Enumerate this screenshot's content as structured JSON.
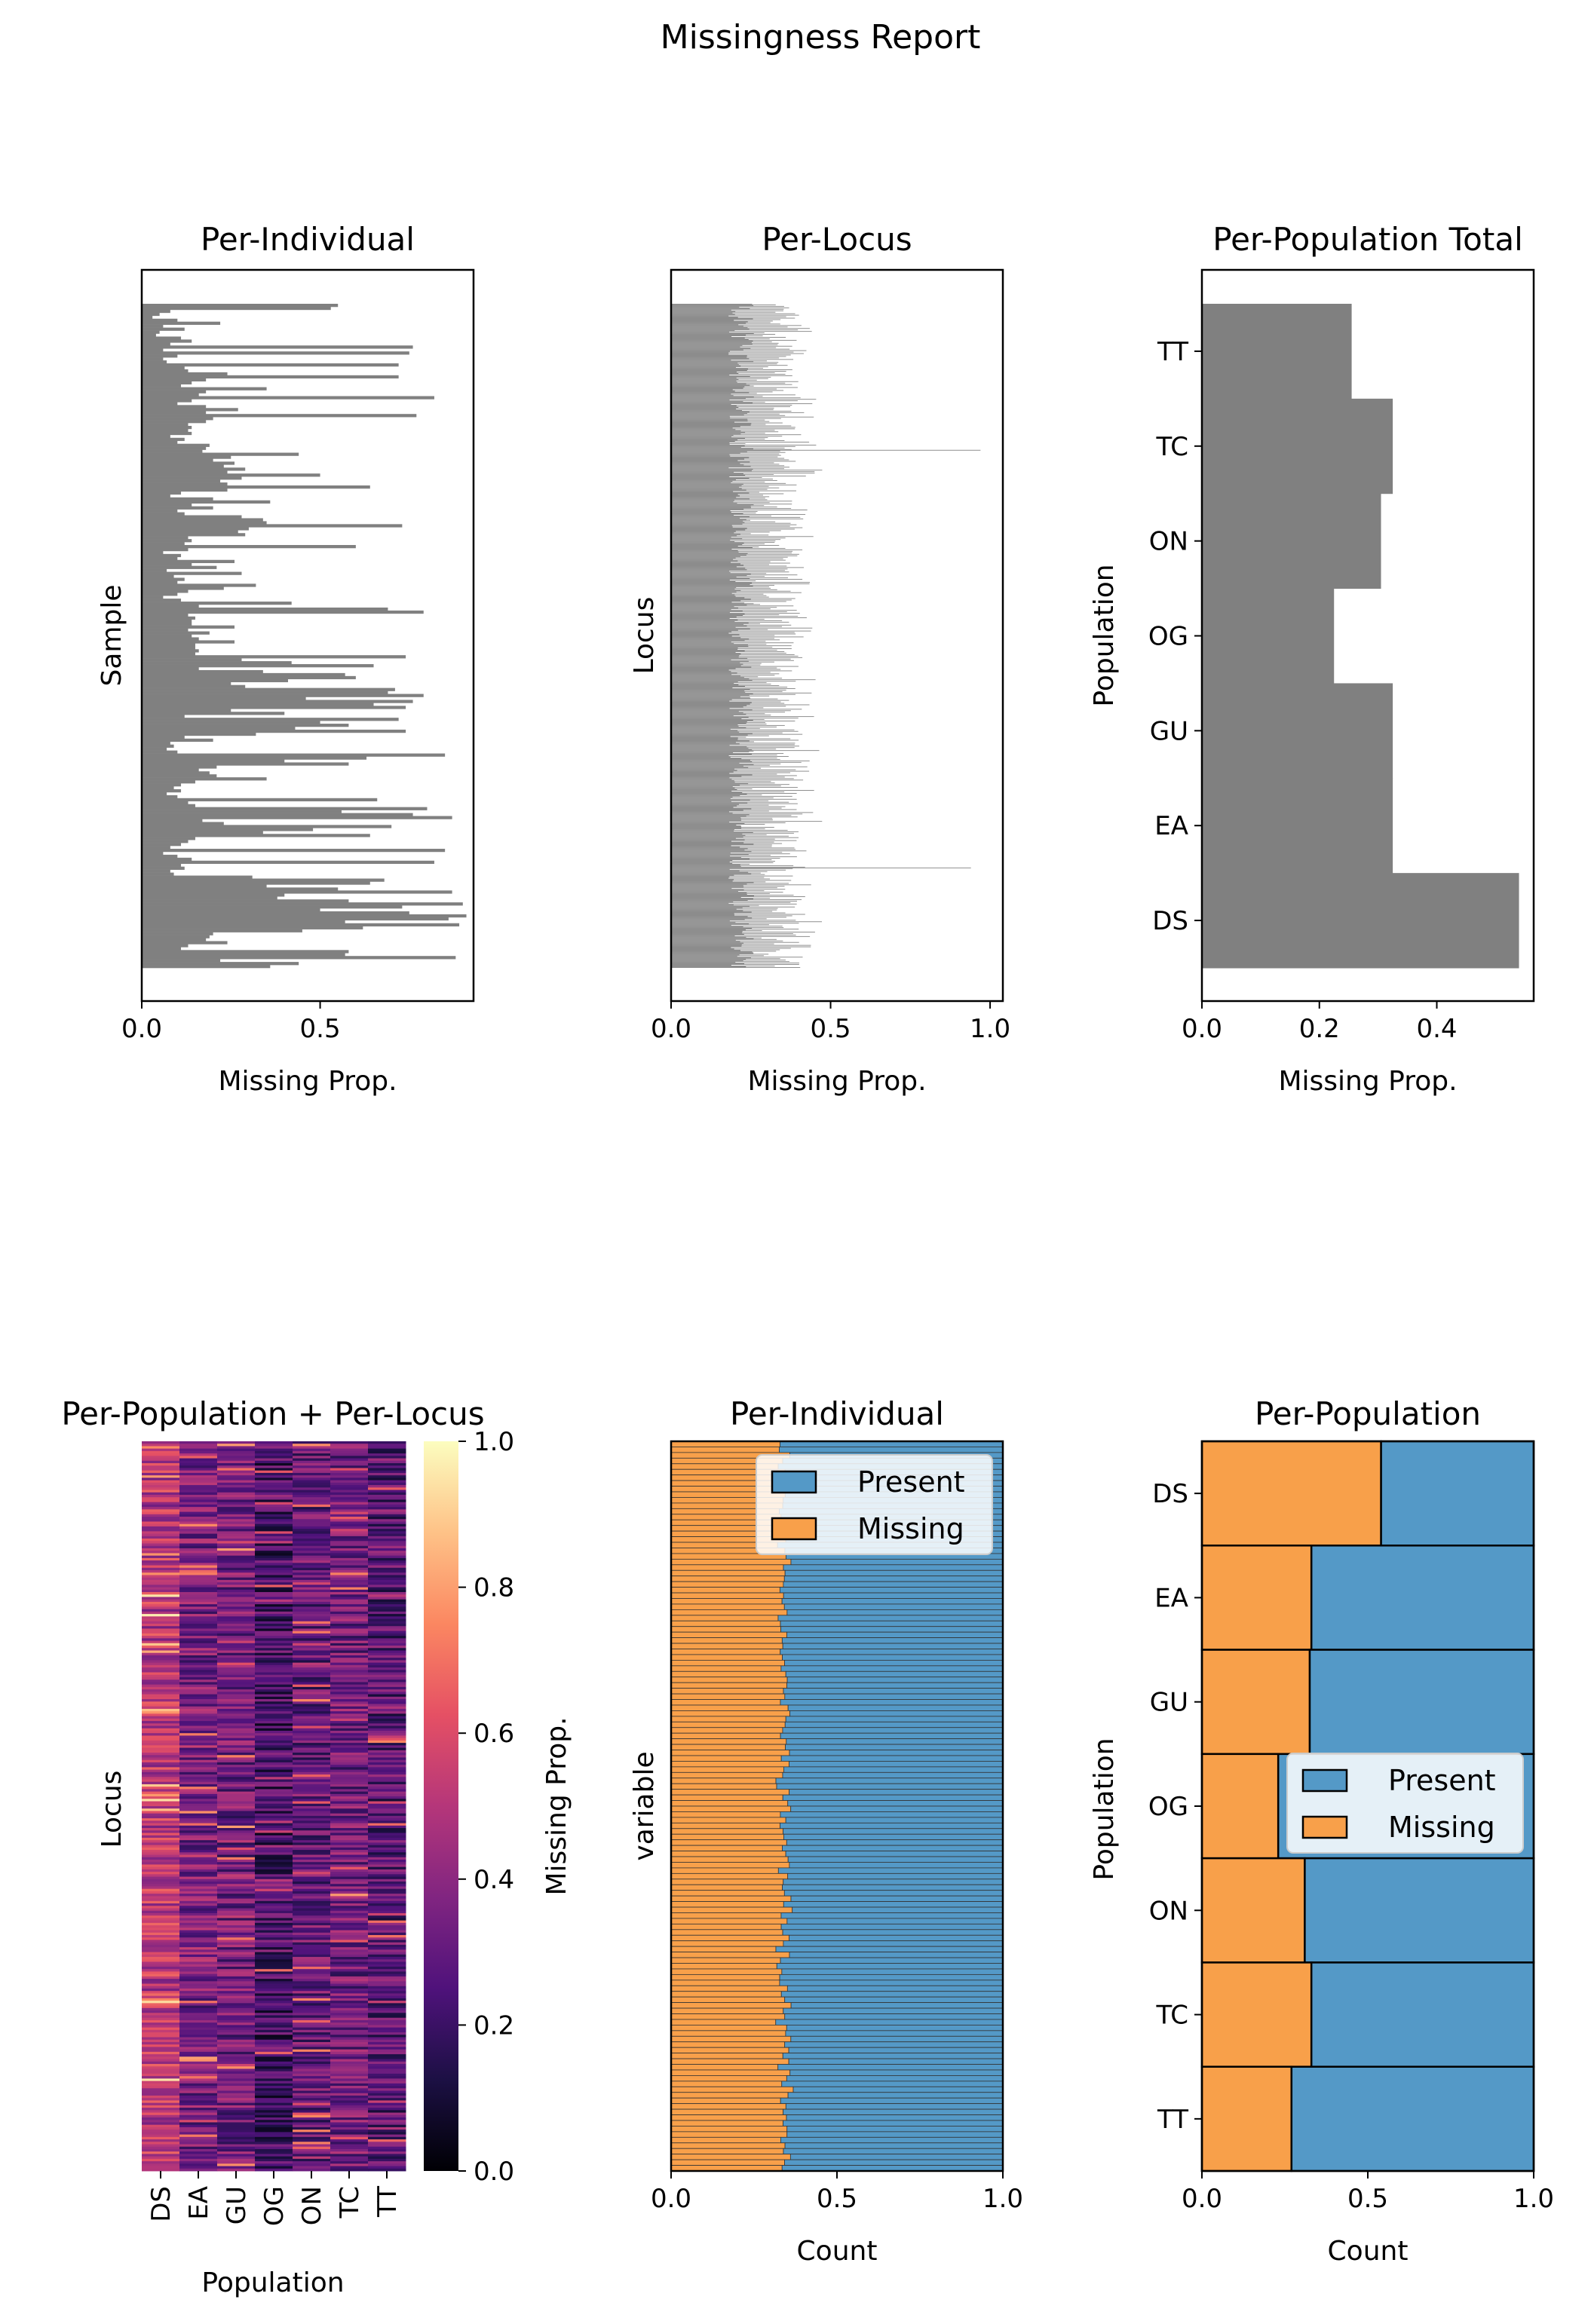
{
  "suptitle": "Missingness Report",
  "chart_data": [
    {
      "id": "per_individual_bar",
      "type": "bar",
      "orientation": "horizontal",
      "title": "Per-Individual",
      "xlabel": "Missing Prop.",
      "ylabel": "Sample",
      "xlim": [
        0,
        0.93
      ],
      "xticks": [
        "0.0",
        "0.5"
      ],
      "values": [
        0.55,
        0.53,
        0.08,
        0.05,
        0.03,
        0.1,
        0.22,
        0.06,
        0.12,
        0.05,
        0.04,
        0.11,
        0.14,
        0.08,
        0.76,
        0.06,
        0.75,
        0.1,
        0.06,
        0.07,
        0.72,
        0.12,
        0.13,
        0.24,
        0.72,
        0.18,
        0.14,
        0.11,
        0.35,
        0.18,
        0.16,
        0.82,
        0.14,
        0.1,
        0.18,
        0.27,
        0.18,
        0.77,
        0.2,
        0.18,
        0.13,
        0.14,
        0.13,
        0.14,
        0.08,
        0.12,
        0.1,
        0.19,
        0.18,
        0.17,
        0.44,
        0.25,
        0.2,
        0.26,
        0.23,
        0.29,
        0.24,
        0.5,
        0.28,
        0.22,
        0.24,
        0.64,
        0.24,
        0.11,
        0.08,
        0.2,
        0.36,
        0.14,
        0.2,
        0.1,
        0.12,
        0.28,
        0.34,
        0.35,
        0.73,
        0.3,
        0.27,
        0.29,
        0.13,
        0.14,
        0.12,
        0.6,
        0.13,
        0.06,
        0.11,
        0.1,
        0.26,
        0.14,
        0.21,
        0.07,
        0.28,
        0.09,
        0.12,
        0.1,
        0.32,
        0.23,
        0.13,
        0.1,
        0.06,
        0.11,
        0.42,
        0.16,
        0.69,
        0.79,
        0.13,
        0.15,
        0.14,
        0.14,
        0.26,
        0.13,
        0.19,
        0.14,
        0.16,
        0.26,
        0.15,
        0.15,
        0.16,
        0.15,
        0.74,
        0.28,
        0.42,
        0.65,
        0.16,
        0.34,
        0.57,
        0.6,
        0.41,
        0.25,
        0.29,
        0.71,
        0.69,
        0.79,
        0.46,
        0.76,
        0.65,
        0.74,
        0.25,
        0.4,
        0.12,
        0.72,
        0.5,
        0.58,
        0.43,
        0.74,
        0.32,
        0.12,
        0.2,
        0.08,
        0.09,
        0.07,
        0.1,
        0.85,
        0.63,
        0.4,
        0.58,
        0.21,
        0.16,
        0.19,
        0.21,
        0.35,
        0.15,
        0.11,
        0.09,
        0.11,
        0.07,
        0.1,
        0.66,
        0.13,
        0.15,
        0.8,
        0.56,
        0.76,
        0.87,
        0.17,
        0.23,
        0.7,
        0.48,
        0.34,
        0.64,
        0.15,
        0.13,
        0.11,
        0.08,
        0.85,
        0.06,
        0.1,
        0.14,
        0.82,
        0.11,
        0.12,
        0.08,
        0.09,
        0.31,
        0.68,
        0.64,
        0.35,
        0.55,
        0.87,
        0.4,
        0.38,
        0.58,
        0.9,
        0.73,
        0.5,
        0.75,
        0.91,
        0.86,
        0.57,
        0.89,
        0.62,
        0.45,
        0.2,
        0.19,
        0.18,
        0.24,
        0.13,
        0.11,
        0.58,
        0.57,
        0.88,
        0.22,
        0.44,
        0.36
      ]
    },
    {
      "id": "per_locus_bar",
      "type": "bar",
      "orientation": "horizontal",
      "title": "Per-Locus",
      "xlabel": "Missing Prop.",
      "ylabel": "Locus",
      "xlim": [
        0,
        1.04
      ],
      "xticks": [
        "0.0",
        "0.5",
        "1.0"
      ],
      "n_loci": 900,
      "value_range_typical": [
        0.15,
        0.5
      ],
      "outliers": [
        {
          "position_fraction": 0.22,
          "value": 0.97
        },
        {
          "position_fraction": 0.85,
          "value": 0.94
        }
      ]
    },
    {
      "id": "per_population_total_bar",
      "type": "bar",
      "orientation": "horizontal",
      "title": "Per-Population Total",
      "xlabel": "Missing Prop.",
      "ylabel": "Population",
      "xlim": [
        0,
        0.565
      ],
      "xticks": [
        "0.0",
        "0.2",
        "0.4"
      ],
      "categories": [
        "DS",
        "EA",
        "GU",
        "OG",
        "ON",
        "TC",
        "TT"
      ],
      "values": [
        0.54,
        0.325,
        0.325,
        0.225,
        0.305,
        0.325,
        0.255
      ]
    },
    {
      "id": "heatmap",
      "type": "heatmap",
      "title": "Per-Population + Per-Locus",
      "xlabel": "Population",
      "ylabel": "Locus",
      "categories": [
        "DS",
        "EA",
        "GU",
        "OG",
        "ON",
        "TC",
        "TT"
      ],
      "column_means": [
        0.5,
        0.35,
        0.33,
        0.22,
        0.3,
        0.33,
        0.27
      ],
      "n_rows": 300,
      "colorbar_label": "Missing Prop.",
      "colorbar_range": [
        0.0,
        1.0
      ],
      "colorbar_ticks": [
        "0.0",
        "0.2",
        "0.4",
        "0.6",
        "0.8",
        "1.0"
      ],
      "colormap": "magma"
    },
    {
      "id": "per_individual_stacked",
      "type": "bar",
      "orientation": "horizontal",
      "stacked": true,
      "normalized": true,
      "title": "Per-Individual",
      "xlabel": "Count",
      "ylabel": "variable",
      "xlim": [
        0,
        1
      ],
      "xticks": [
        "0.0",
        "0.5",
        "1.0"
      ],
      "n_bars": 130,
      "missing_range": [
        0.29,
        0.37
      ],
      "series": [
        {
          "name": "Present",
          "color": "#5499c7"
        },
        {
          "name": "Missing",
          "color": "#f8a04a"
        }
      ],
      "legend_position": "top-right"
    },
    {
      "id": "per_population_stacked",
      "type": "bar",
      "orientation": "horizontal",
      "stacked": true,
      "normalized": true,
      "title": "Per-Population",
      "xlabel": "Count",
      "ylabel": "Population",
      "xlim": [
        0,
        1
      ],
      "xticks": [
        "0.0",
        "0.5",
        "1.0"
      ],
      "categories": [
        "DS",
        "EA",
        "GU",
        "OG",
        "ON",
        "TC",
        "TT"
      ],
      "series": [
        {
          "name": "Present",
          "color": "#5499c7",
          "values": [
            0.46,
            0.67,
            0.675,
            0.77,
            0.69,
            0.67,
            0.73
          ]
        },
        {
          "name": "Missing",
          "color": "#f8a04a",
          "values": [
            0.54,
            0.33,
            0.325,
            0.23,
            0.31,
            0.33,
            0.27
          ]
        }
      ],
      "legend_position": "center-right"
    }
  ]
}
